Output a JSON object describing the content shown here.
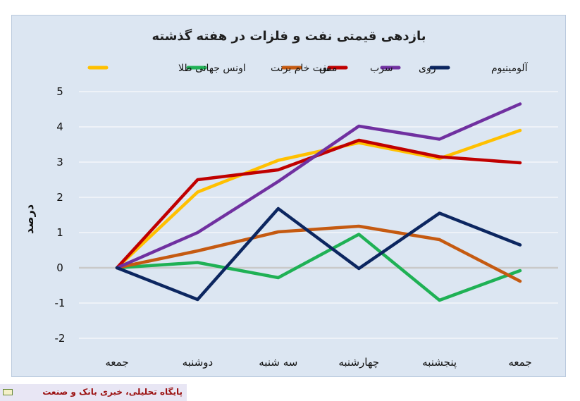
{
  "chart_data": {
    "type": "line",
    "title": "بازدهی قیمتی نفت و فلزات در هفته گذشته",
    "ylabel": "درصد",
    "xlabel": "",
    "ylim": [
      -2,
      5
    ],
    "y_ticks": [
      {
        "value": 5,
        "label": "5"
      },
      {
        "value": 4,
        "label": "4"
      },
      {
        "value": 3,
        "label": "3"
      },
      {
        "value": 2,
        "label": "2"
      },
      {
        "value": 1,
        "label": "1"
      },
      {
        "value": 0,
        "label": "0"
      },
      {
        "value": -1,
        "label": "-1"
      },
      {
        "value": -2,
        "label": "-2"
      }
    ],
    "categories": [
      "جمعه",
      "دوشنبه",
      "سه شنبه",
      "چهارشنبه",
      "پنجشنبه",
      "جمعه"
    ],
    "grid": true,
    "legend_position": "top",
    "series": [
      {
        "name": "اونس جهانی طلا",
        "color": "#ffc000",
        "values": [
          0,
          2.15,
          3.05,
          3.55,
          3.1,
          3.9
        ]
      },
      {
        "name": "نفت خام برنت",
        "color": "#1fb155",
        "values": [
          0,
          0.15,
          -0.28,
          0.95,
          -0.92,
          -0.08
        ]
      },
      {
        "name": "مس",
        "color": "#c55a11",
        "values": [
          0,
          0.48,
          1.02,
          1.18,
          0.8,
          -0.38
        ]
      },
      {
        "name": "سرب",
        "color": "#c00000",
        "values": [
          0,
          2.5,
          2.78,
          3.62,
          3.15,
          2.98
        ]
      },
      {
        "name": "روی",
        "color": "#7030a0",
        "values": [
          0,
          1.0,
          2.45,
          4.02,
          3.65,
          4.65
        ]
      },
      {
        "name": "آلومینیوم",
        "color": "#0c2660",
        "values": [
          0,
          -0.9,
          1.68,
          -0.02,
          1.55,
          0.65
        ]
      }
    ]
  },
  "footer": {
    "text": "پایگاه تحلیلی، خبری بانک و صنعت"
  }
}
